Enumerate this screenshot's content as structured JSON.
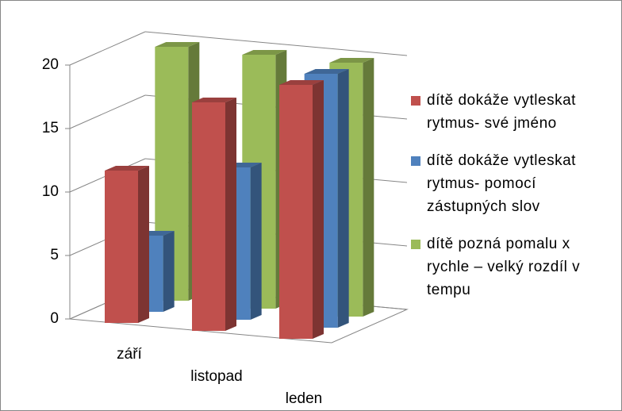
{
  "chart_data": {
    "type": "bar3d",
    "categories": [
      "září",
      "listopad",
      "leden"
    ],
    "series": [
      {
        "name": "dítě dokáže vytleskat rytmus- své jméno",
        "color": "#c0504d",
        "values": [
          12,
          18,
          20
        ]
      },
      {
        "name": "dítě dokáže vytleskat rytmus- pomocí zástupných slov",
        "color": "#4f81bd",
        "values": [
          6,
          12,
          20
        ]
      },
      {
        "name": "dítě pozná pomalu x rychle – velký rozdíl v tempu",
        "color": "#9bbb59",
        "values": [
          20,
          20,
          20
        ]
      }
    ],
    "ylim": [
      0,
      20
    ],
    "yticks": [
      0,
      5,
      10,
      15,
      20
    ],
    "grid": true,
    "legend": "right"
  }
}
